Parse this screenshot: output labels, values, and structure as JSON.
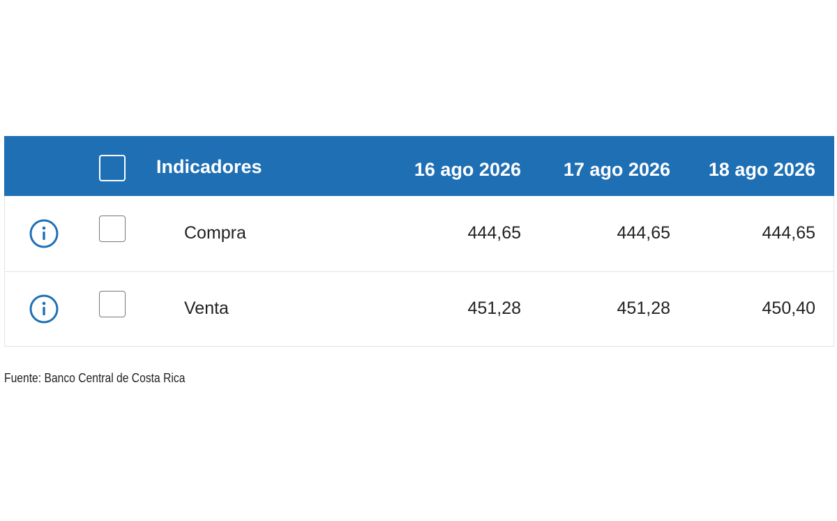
{
  "table": {
    "header": [
      "Indicadores",
      "16 ago 2026",
      "17 ago 2026",
      "18 ago 2026"
    ],
    "rows": [
      [
        "Compra",
        "444,65",
        "444,65",
        "444,65"
      ],
      [
        "Venta",
        "451,28",
        "451,28",
        "450,40"
      ]
    ]
  },
  "footer": {
    "source": "Fuente: Banco Central de Costa Rica"
  }
}
